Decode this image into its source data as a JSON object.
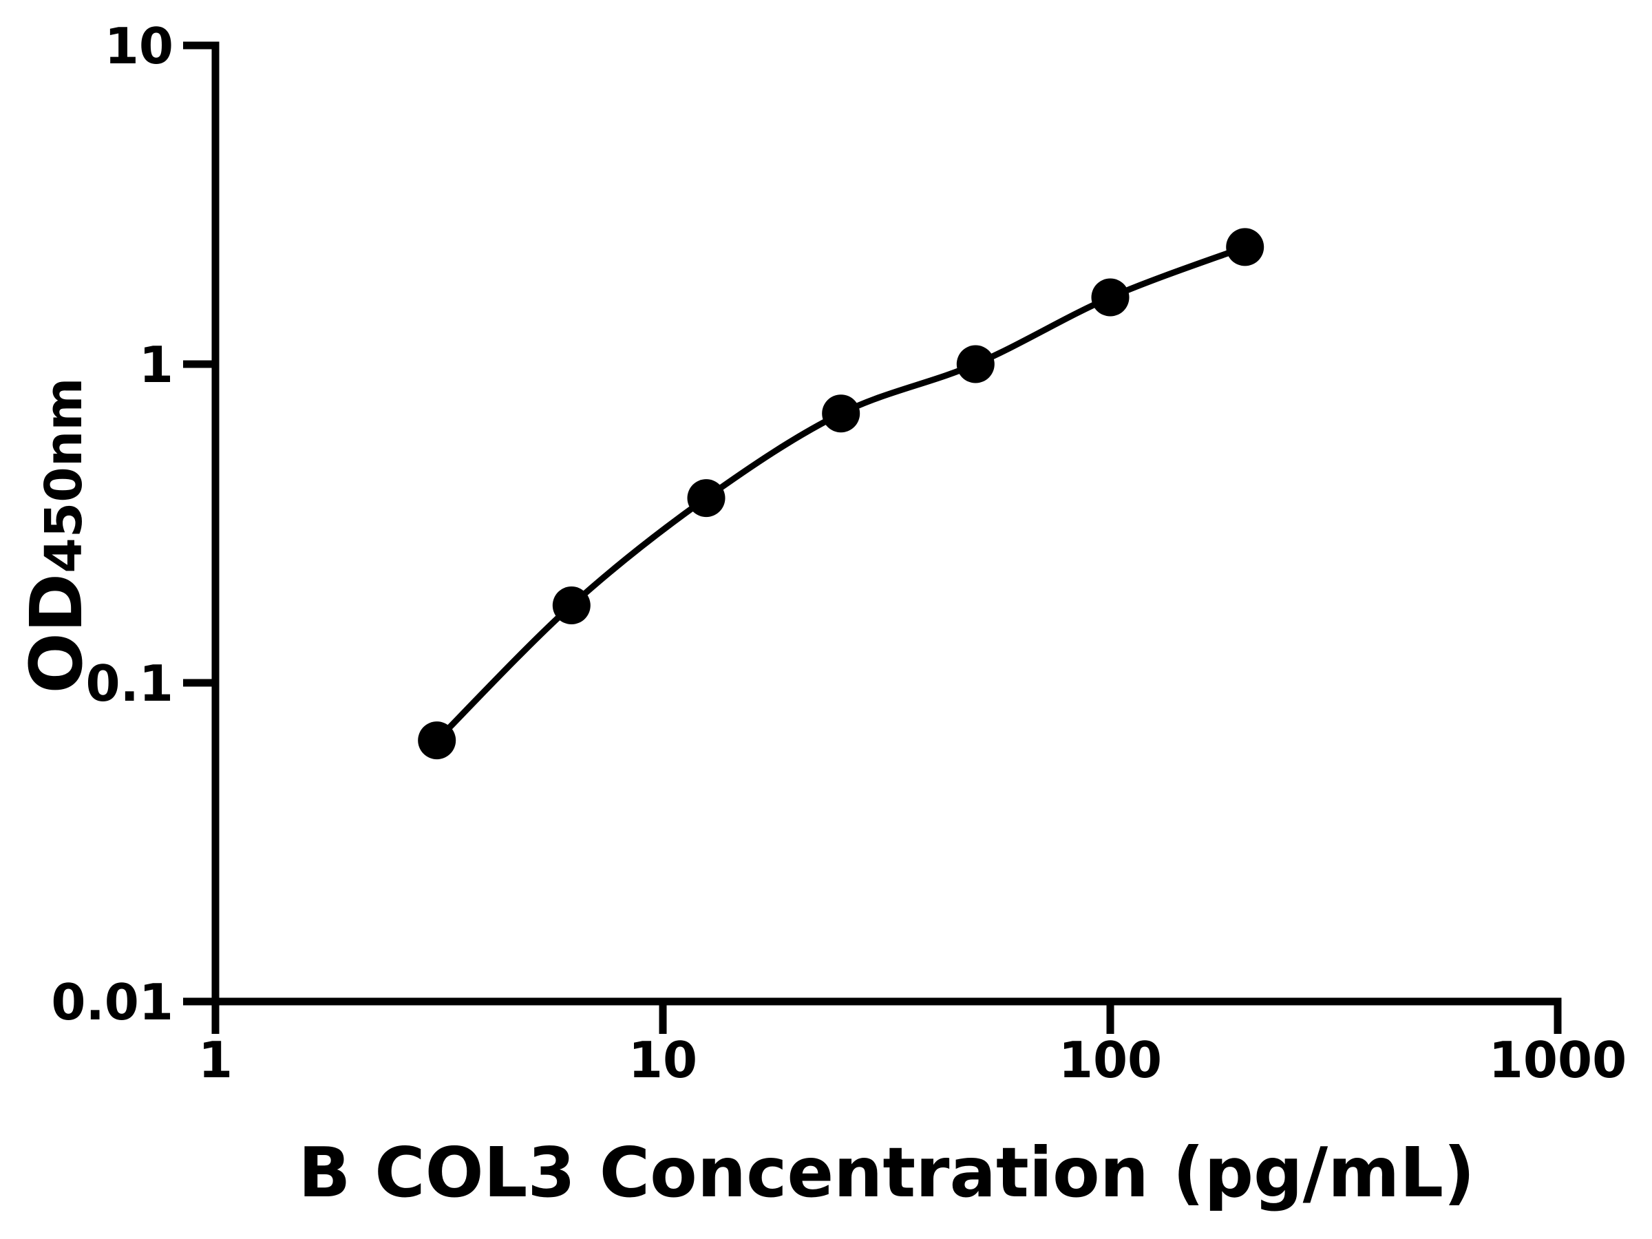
{
  "chart_data": {
    "type": "scatter",
    "title": "",
    "xlabel": "B COL3 Concentration (pg/mL)",
    "ylabel": "OD450nm",
    "ylabel_main": "OD",
    "ylabel_sub": "450nm",
    "x": [
      3.125,
      6.25,
      12.5,
      25,
      50,
      100,
      200
    ],
    "y": [
      0.066,
      0.175,
      0.38,
      0.7,
      1.0,
      1.62,
      2.33
    ],
    "xscale": "log",
    "yscale": "log",
    "xlim": [
      1,
      1000
    ],
    "ylim": [
      0.01,
      10
    ],
    "xtick_labels": [
      "1",
      "10",
      "100",
      "1000"
    ],
    "ytick_labels": [
      "10",
      "1",
      "0.1",
      "0.01"
    ],
    "grid": false,
    "legend": false,
    "curve_style": "smooth-fit-through-points",
    "axis_color": "#000000",
    "marker_color": "#000000",
    "line_color": "#000000",
    "background_color": "#ffffff"
  }
}
